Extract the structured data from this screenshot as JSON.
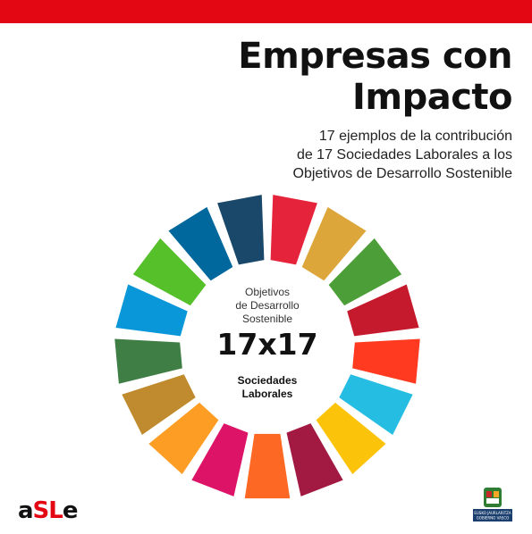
{
  "colors": {
    "brand_red": "#e30613",
    "sdg": [
      "#e5243b",
      "#dda63a",
      "#4c9f38",
      "#c5192d",
      "#ff3a21",
      "#26bde2",
      "#fcc30b",
      "#a21942",
      "#fd6925",
      "#dd1367",
      "#fd9d24",
      "#bf8b2e",
      "#3f7e44",
      "#0a97d9",
      "#56c02b",
      "#00689d",
      "#19486a"
    ]
  },
  "header": {
    "title_line1": "Empresas con",
    "title_line2": "Impacto",
    "subtitle_line1": "17 ejemplos de la contribución",
    "subtitle_line2": "de 17 Sociedades Laborales a los",
    "subtitle_line3": "Objetivos de Desarrollo Sostenible"
  },
  "wheel": {
    "segments": 17,
    "center_top_line1": "Objetivos",
    "center_top_line2": "de Desarrollo",
    "center_top_line3": "Sostenible",
    "center_big": "17x17",
    "center_bottom_line1": "Sociedades",
    "center_bottom_line2": "Laborales"
  },
  "footer": {
    "asle_part1": "a",
    "asle_part2": "SL",
    "asle_part3": "e",
    "gov_line1": "EUSKO JAURLARITZA",
    "gov_line2": "GOBIERNO VASCO"
  }
}
